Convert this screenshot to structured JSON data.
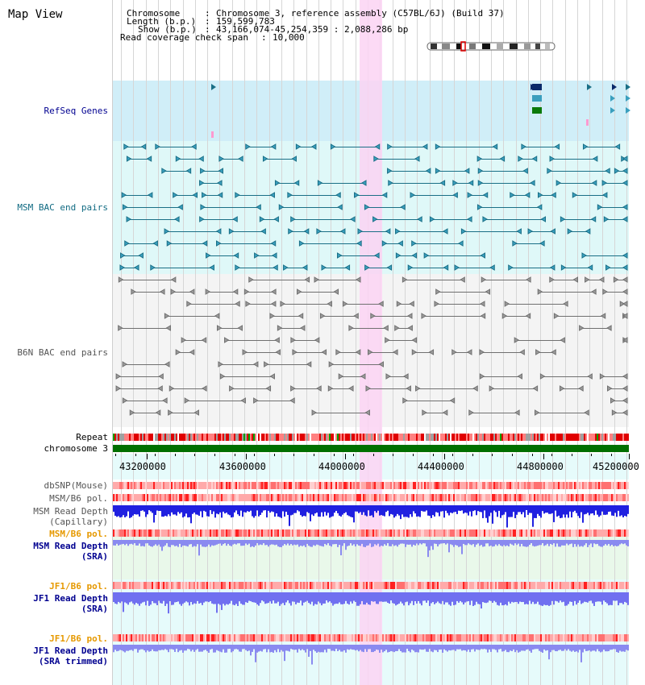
{
  "view_title": "Map View",
  "info": {
    "chromosome_label": "Chromosome",
    "chromosome_value": "Chromosome 3, reference assembly (C57BL/6J) (Build 37)",
    "length_label": "Length (b.p.)",
    "length_value": "159,599,783",
    "show_label": "Show (b.p.)",
    "show_value": "43,166,074-45,254,359 : 2,088,286 bp",
    "coverage_label": "Read coverage check span",
    "coverage_value": "10,000"
  },
  "tracks": {
    "refseq": "RefSeq Genes",
    "msm_bac": "MSM BAC end pairs",
    "b6n_bac": "B6N BAC end pairs",
    "repeat": "Repeat",
    "chromosome": "chromosome 3",
    "dbsnp": "dbSNP(Mouse)",
    "msm_b6_pol_1": "MSM/B6 pol.",
    "msm_read_depth_cap_1": "MSM Read Depth",
    "msm_read_depth_cap_2": "(Capillary)",
    "msm_b6_pol_2": "MSM/B6 pol.",
    "msm_read_depth_sra_1": "MSM Read Depth",
    "msm_read_depth_sra_2": "(SRA)",
    "jf1_b6_pol_1": "JF1/B6 pol.",
    "jf1_read_depth_sra_1": "JF1 Read Depth",
    "jf1_read_depth_sra_2": "(SRA)",
    "jf1_b6_pol_2": "JF1/B6 pol.",
    "jf1_read_depth_trim_1": "JF1 Read Depth",
    "jf1_read_depth_trim_2": "(SRA trimmed)"
  },
  "axis": {
    "ticks": [
      "43200000",
      "43600000",
      "44000000",
      "44400000",
      "44800000",
      "45200000"
    ]
  },
  "colors": {
    "refseq_bg": "#d0eef8",
    "msm_bg": "#dff8f8",
    "b6n_bg": "#f4f4f4",
    "highlight": "#fbd3f3",
    "msm_color": "#1a6f86",
    "b6n_color": "#707070",
    "label_navy": "#000090",
    "label_teal": "#106a82",
    "label_gray": "#555555",
    "label_orange": "#e69900",
    "chromosome_bar": "#007000"
  }
}
